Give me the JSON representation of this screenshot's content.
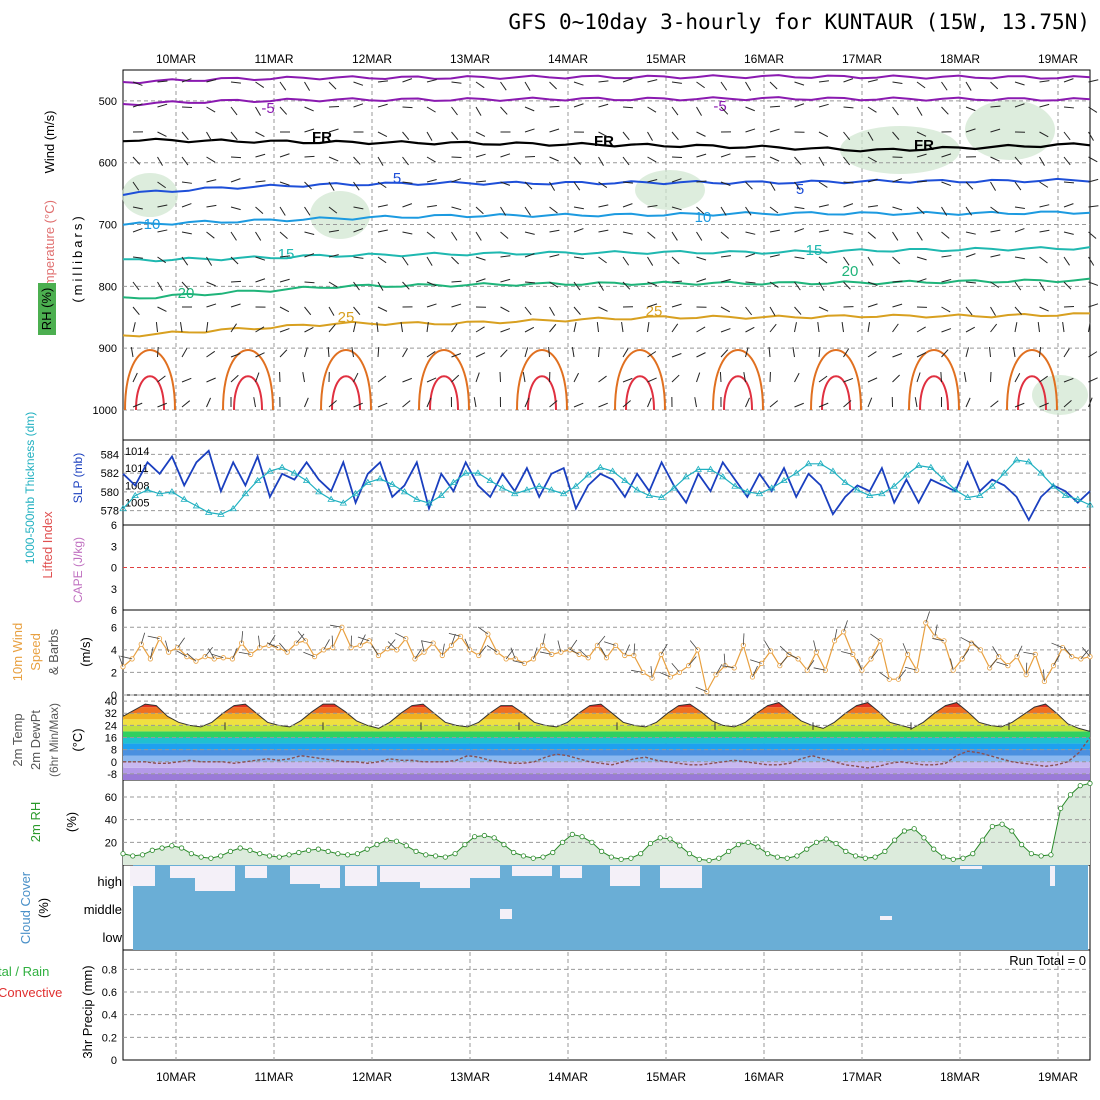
{
  "title": "GFS 0~10day 3-hourly for KUNTAUR (15W, 13.75N)",
  "dates": [
    "10MAR",
    "11MAR",
    "12MAR",
    "13MAR",
    "14MAR",
    "15MAR",
    "16MAR",
    "17MAR",
    "18MAR",
    "19MAR"
  ],
  "colors": {
    "purple": "#8a1ab0",
    "black": "#000000",
    "blue": "#1e4fd8",
    "lightblue": "#1c9ae0",
    "teal": "#1fb8b0",
    "green": "#1fb47a",
    "orange": "#d8a020",
    "darkorange": "#e07020",
    "red": "#e03040",
    "rhgreen": "#cfe6cf",
    "cloud": "#6aaed6",
    "slp": "#1a3fbf",
    "thick": "#20b0c0",
    "wind10m": "#e8a040",
    "rh2m": "#2a8a2a"
  },
  "labels": {
    "upper_axis_temp": "Temperature (°C)",
    "upper_axis_wind": "Wind (m/s)",
    "upper_axis_rh": "RH (%)",
    "upper_axis_unit": "(millibars)",
    "thick_label": "1000-500mb Thickness (dm)",
    "slp_label": "SLP (mb)",
    "li_label": "Lifted Index",
    "cape_label": "CAPE (J/kg)",
    "wind10_label1": "10m Wind",
    "wind10_label2": "Speed",
    "wind10_label3": "& Barbs",
    "wind10_unit": "(m/s)",
    "temp_label1": "2m Temp",
    "temp_label2": "2m DewPt",
    "temp_label3": "(6hr Min/Max)",
    "temp_unit": "(°C)",
    "rh2m_label": "2m RH",
    "rh2m_unit": "(%)",
    "cloud_label": "Cloud Cover",
    "cloud_unit": "(%)",
    "cloud_high": "high",
    "cloud_middle": "middle",
    "cloud_low": "low",
    "precip_label1": "tal / Rain",
    "precip_label2": "Convective",
    "precip_axis": "3hr Precip (mm)",
    "run_total": "Run Total = 0"
  },
  "upper_air": {
    "pressure_ticks": [
      "500",
      "600",
      "700",
      "800",
      "900",
      "1000"
    ],
    "contour_labels": [
      "-5",
      "-5",
      "FR",
      "FR",
      "FR",
      "5",
      "5",
      "10",
      "10",
      "15",
      "15",
      "20",
      "20",
      "25",
      "25"
    ]
  },
  "chart_data": [
    {
      "type": "line",
      "name": "pressure-time cross section",
      "xlabel": "",
      "ylabel": "millibars",
      "ylim": [
        1000,
        450
      ],
      "series": [
        {
          "name": "-5",
          "values_mb": [
            505,
            500,
            498,
            498,
            497,
            497,
            496,
            497,
            497,
            498
          ]
        },
        {
          "name": "FR",
          "values_mb": [
            563,
            565,
            567,
            568,
            570,
            572,
            575,
            580,
            575,
            570
          ]
        },
        {
          "name": "5",
          "values_mb": [
            650,
            640,
            635,
            633,
            633,
            632,
            632,
            630,
            630,
            628
          ]
        },
        {
          "name": "10",
          "values_mb": [
            700,
            695,
            690,
            686,
            685,
            684,
            682,
            682,
            682,
            680
          ]
        },
        {
          "name": "15",
          "values_mb": [
            758,
            755,
            750,
            748,
            746,
            745,
            745,
            742,
            740,
            738
          ]
        },
        {
          "name": "20",
          "values_mb": [
            820,
            810,
            800,
            798,
            796,
            795,
            795,
            794,
            792,
            790
          ]
        },
        {
          "name": "25",
          "values_mb": [
            880,
            870,
            860,
            860,
            855,
            850,
            850,
            848,
            848,
            845
          ]
        }
      ]
    },
    {
      "type": "line",
      "name": "thickness and SLP",
      "y_left_ticks": [
        "584",
        "582",
        "580",
        "578"
      ],
      "y_right_ticks": [
        "1014",
        "1011",
        "1008",
        "1005"
      ],
      "series": [
        {
          "name": "SLP (mb)",
          "values": [
            1010,
            1008,
            1012,
            1010,
            1013,
            1008,
            1012,
            1014,
            1007,
            1012,
            1008,
            1013,
            1006,
            1010,
            1009,
            1012,
            1009,
            1007,
            1012,
            1005,
            1010,
            1012,
            1006,
            1008,
            1012,
            1004,
            1010,
            1007,
            1012,
            1008,
            1006,
            1010,
            1007,
            1011,
            1006,
            1010,
            1011,
            1004,
            1008,
            1010,
            1009,
            1006,
            1010,
            1007,
            1012,
            1008,
            1005,
            1010,
            1007,
            1012,
            1009,
            1006,
            1010,
            1007,
            1011,
            1006,
            1010,
            1008,
            1003,
            1006,
            1008,
            1007,
            1011,
            1005,
            1009,
            1005,
            1009,
            1008,
            1007,
            1012,
            1007,
            1009,
            1008,
            1006,
            1002,
            1006,
            1008,
            1007,
            1005,
            1007
          ]
        },
        {
          "name": "1000-500mb Thickness (dm)",
          "values": [
            578.2,
            579.6,
            580.2,
            579.8,
            580.0,
            579.2,
            578.5,
            577.8,
            577.6,
            578.2,
            579.8,
            581.2,
            582.2,
            582.6,
            582.0,
            581.2,
            580.0,
            579.2,
            578.8,
            579.8,
            581.0,
            581.4,
            580.8,
            580.0,
            579.2,
            578.8,
            579.6,
            581.0,
            582.0,
            582.0,
            581.2,
            580.4,
            579.8,
            580.2,
            580.6,
            580.2,
            579.8,
            580.6,
            581.8,
            582.6,
            582.2,
            581.2,
            580.2,
            579.6,
            579.4,
            580.4,
            581.6,
            582.4,
            582.4,
            581.6,
            580.6,
            580.0,
            579.8,
            580.4,
            581.2,
            582.0,
            583.0,
            583.0,
            582.2,
            581.0,
            580.2,
            579.6,
            579.8,
            580.6,
            581.8,
            582.8,
            582.6,
            581.4,
            580.2,
            579.4,
            579.6,
            580.6,
            582.0,
            583.4,
            583.2,
            582.0,
            580.6,
            579.6,
            579.2,
            578.6
          ]
        }
      ]
    },
    {
      "type": "line",
      "name": "lifted index / CAPE",
      "y_ticks": [
        "6",
        "3",
        "0",
        "3",
        "6"
      ],
      "series": []
    },
    {
      "type": "line",
      "name": "10m wind speed",
      "y_ticks": [
        "6",
        "4",
        "2",
        "0"
      ],
      "series": [
        {
          "name": "10m Wind Speed",
          "values": [
            2.5,
            3.2,
            4.5,
            3.2,
            5.0,
            3.8,
            4.2,
            3.4,
            3.0,
            3.4,
            3.2,
            3.3,
            3.2,
            4.6,
            3.6,
            4.2,
            4.4,
            4.2,
            3.8,
            4.6,
            4.8,
            3.4,
            4.0,
            4.2,
            6.0,
            4.2,
            4.4,
            4.8,
            3.5,
            4.1,
            4.0,
            5.0,
            3.2,
            3.8,
            4.6,
            3.5,
            4.4,
            5.2,
            4.0,
            3.5,
            5.4,
            3.8,
            3.2,
            3.2,
            2.8,
            3.2,
            4.4,
            3.6,
            3.8,
            4.0,
            3.6,
            3.3,
            4.4,
            3.3,
            4.4,
            3.5,
            3.5,
            2.0,
            1.5,
            3.6,
            1.6,
            2.0,
            2.6,
            4.0,
            0.3,
            1.8,
            2.6,
            2.4,
            4.4,
            1.6,
            2.8,
            3.9,
            2.6,
            3.6,
            3.2,
            2.2,
            3.8,
            2.2,
            4.8,
            5.6,
            3.6,
            2.2,
            3.2,
            4.8,
            1.4,
            1.4,
            3.6,
            2.2,
            6.4,
            5.2,
            4.8,
            2.2,
            3.2,
            4.6,
            4.0,
            2.4,
            3.4,
            2.6,
            3.4,
            1.8,
            3.6,
            1.2,
            2.6,
            4.2,
            3.4,
            3.2,
            3.4
          ]
        }
      ]
    },
    {
      "type": "area",
      "name": "2m temperature and dewpoint",
      "y_ticks": [
        "40",
        "32",
        "24",
        "16",
        "8",
        "0",
        "-8"
      ],
      "series": [
        {
          "name": "2m Temp",
          "values": [
            30,
            34,
            38,
            37,
            30,
            26,
            24,
            23,
            26,
            32,
            37,
            38,
            32,
            26,
            24,
            23,
            27,
            33,
            38,
            38,
            33,
            27,
            24,
            22,
            26,
            32,
            37,
            38,
            32,
            26,
            24,
            23,
            26,
            32,
            37,
            37,
            32,
            26,
            24,
            23,
            26,
            32,
            37,
            38,
            32,
            26,
            24,
            23,
            26,
            32,
            37,
            38,
            33,
            27,
            24,
            23,
            26,
            32,
            37,
            39,
            33,
            27,
            24,
            22,
            26,
            32,
            37,
            39,
            33,
            26,
            24,
            22,
            26,
            32,
            37,
            39,
            33,
            26,
            24,
            23,
            26,
            31,
            36,
            38,
            32,
            25,
            22,
            20
          ]
        },
        {
          "name": "2m DewPt",
          "values": [
            0,
            0,
            0,
            -1,
            -1,
            0,
            1,
            0,
            0,
            0,
            -1,
            0,
            1,
            2,
            1,
            2,
            4,
            3,
            2,
            1,
            0,
            0,
            -1,
            0,
            2,
            1,
            1,
            0,
            0,
            0,
            1,
            4,
            3,
            1,
            0,
            -1,
            -1,
            0,
            3,
            5,
            4,
            2,
            0,
            -1,
            -2,
            0,
            2,
            3,
            1,
            0,
            -1,
            -2,
            -2,
            -1,
            0,
            1,
            0,
            -1,
            -2,
            -2,
            -1,
            2,
            4,
            2,
            0,
            -2,
            -3,
            -4,
            -3,
            -1,
            0,
            -1,
            -2,
            -2,
            -1,
            4,
            7,
            6,
            4,
            2,
            0,
            -1,
            -2,
            -3,
            -2,
            0,
            6,
            16
          ]
        }
      ]
    },
    {
      "type": "line",
      "name": "2m RH",
      "y_ticks": [
        "60",
        "40",
        "20"
      ],
      "series": [
        {
          "name": "2m RH",
          "values": [
            10,
            8,
            9,
            13,
            15,
            17,
            15,
            10,
            7,
            6,
            8,
            12,
            15,
            13,
            10,
            8,
            7,
            9,
            11,
            13,
            14,
            12,
            10,
            9,
            10,
            14,
            18,
            22,
            21,
            17,
            12,
            9,
            8,
            7,
            10,
            18,
            25,
            26,
            24,
            18,
            11,
            8,
            6,
            7,
            11,
            20,
            27,
            25,
            20,
            12,
            7,
            5,
            6,
            10,
            19,
            24,
            23,
            17,
            10,
            5,
            4,
            6,
            12,
            18,
            20,
            16,
            10,
            7,
            6,
            8,
            14,
            20,
            23,
            19,
            12,
            8,
            6,
            7,
            12,
            22,
            30,
            32,
            24,
            14,
            7,
            5,
            6,
            10,
            22,
            34,
            36,
            30,
            18,
            10,
            8,
            9,
            50,
            62,
            70,
            72
          ]
        }
      ]
    },
    {
      "type": "heatmap",
      "name": "cloud cover",
      "categories": [
        "high",
        "middle",
        "low"
      ],
      "series": []
    },
    {
      "type": "bar",
      "name": "3hr precip",
      "y_ticks": [
        "0.8",
        "0.6",
        "0.4",
        "0.2",
        "0"
      ],
      "ylim": [
        0,
        0.9
      ],
      "series": []
    }
  ]
}
